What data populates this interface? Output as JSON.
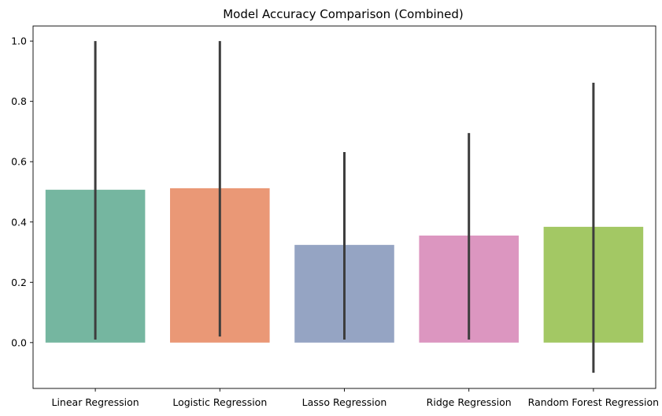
{
  "chart_data": {
    "type": "bar",
    "title": "Model Accuracy Comparison (Combined)",
    "xlabel": "",
    "ylabel": "",
    "categories": [
      "Linear Regression",
      "Logistic Regression",
      "Lasso Regression",
      "Ridge Regression",
      "Random Forest Regression"
    ],
    "values": [
      0.507,
      0.512,
      0.324,
      0.355,
      0.384
    ],
    "error_low": [
      0.01,
      0.02,
      0.01,
      0.01,
      -0.1
    ],
    "error_high": [
      1.0,
      1.0,
      0.632,
      0.695,
      0.862
    ],
    "colors": [
      "#75b6a0",
      "#ea9876",
      "#95a4c3",
      "#dc96c0",
      "#a3c864"
    ],
    "error_color": "#3d3d3d",
    "ylim": [
      -0.152,
      1.05
    ],
    "yticks": [
      0.0,
      0.2,
      0.4,
      0.6,
      0.8,
      1.0
    ],
    "ytick_labels": [
      "0.0",
      "0.2",
      "0.4",
      "0.6",
      "0.8",
      "1.0"
    ],
    "grid": false,
    "legend": "none"
  }
}
